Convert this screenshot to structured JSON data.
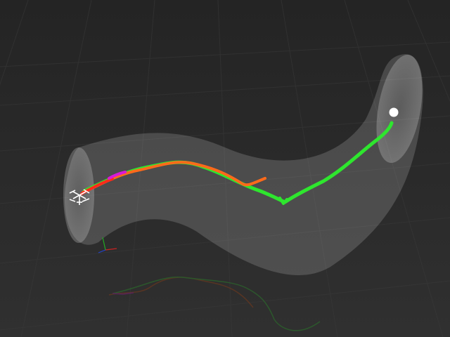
{
  "scene": {
    "background_top": "#242424",
    "background_bottom": "#303030",
    "grid_color": "#3a3a3a",
    "tube_fill": "#ffffff",
    "tube_opacity": 0.16,
    "colors": {
      "trajectory_green": "#2ee62e",
      "trajectory_orange": "#ff6a1a",
      "trajectory_red": "#ff2a1a",
      "trajectory_magenta": "#d81ad8",
      "goal_marker": "#ffffff",
      "axis_x": "#cc2222",
      "axis_y": "#22aa22",
      "axis_z": "#2244cc"
    },
    "icons": [
      "quadrotor-icon",
      "goal-marker-icon",
      "axes-gizmo-icon"
    ]
  }
}
